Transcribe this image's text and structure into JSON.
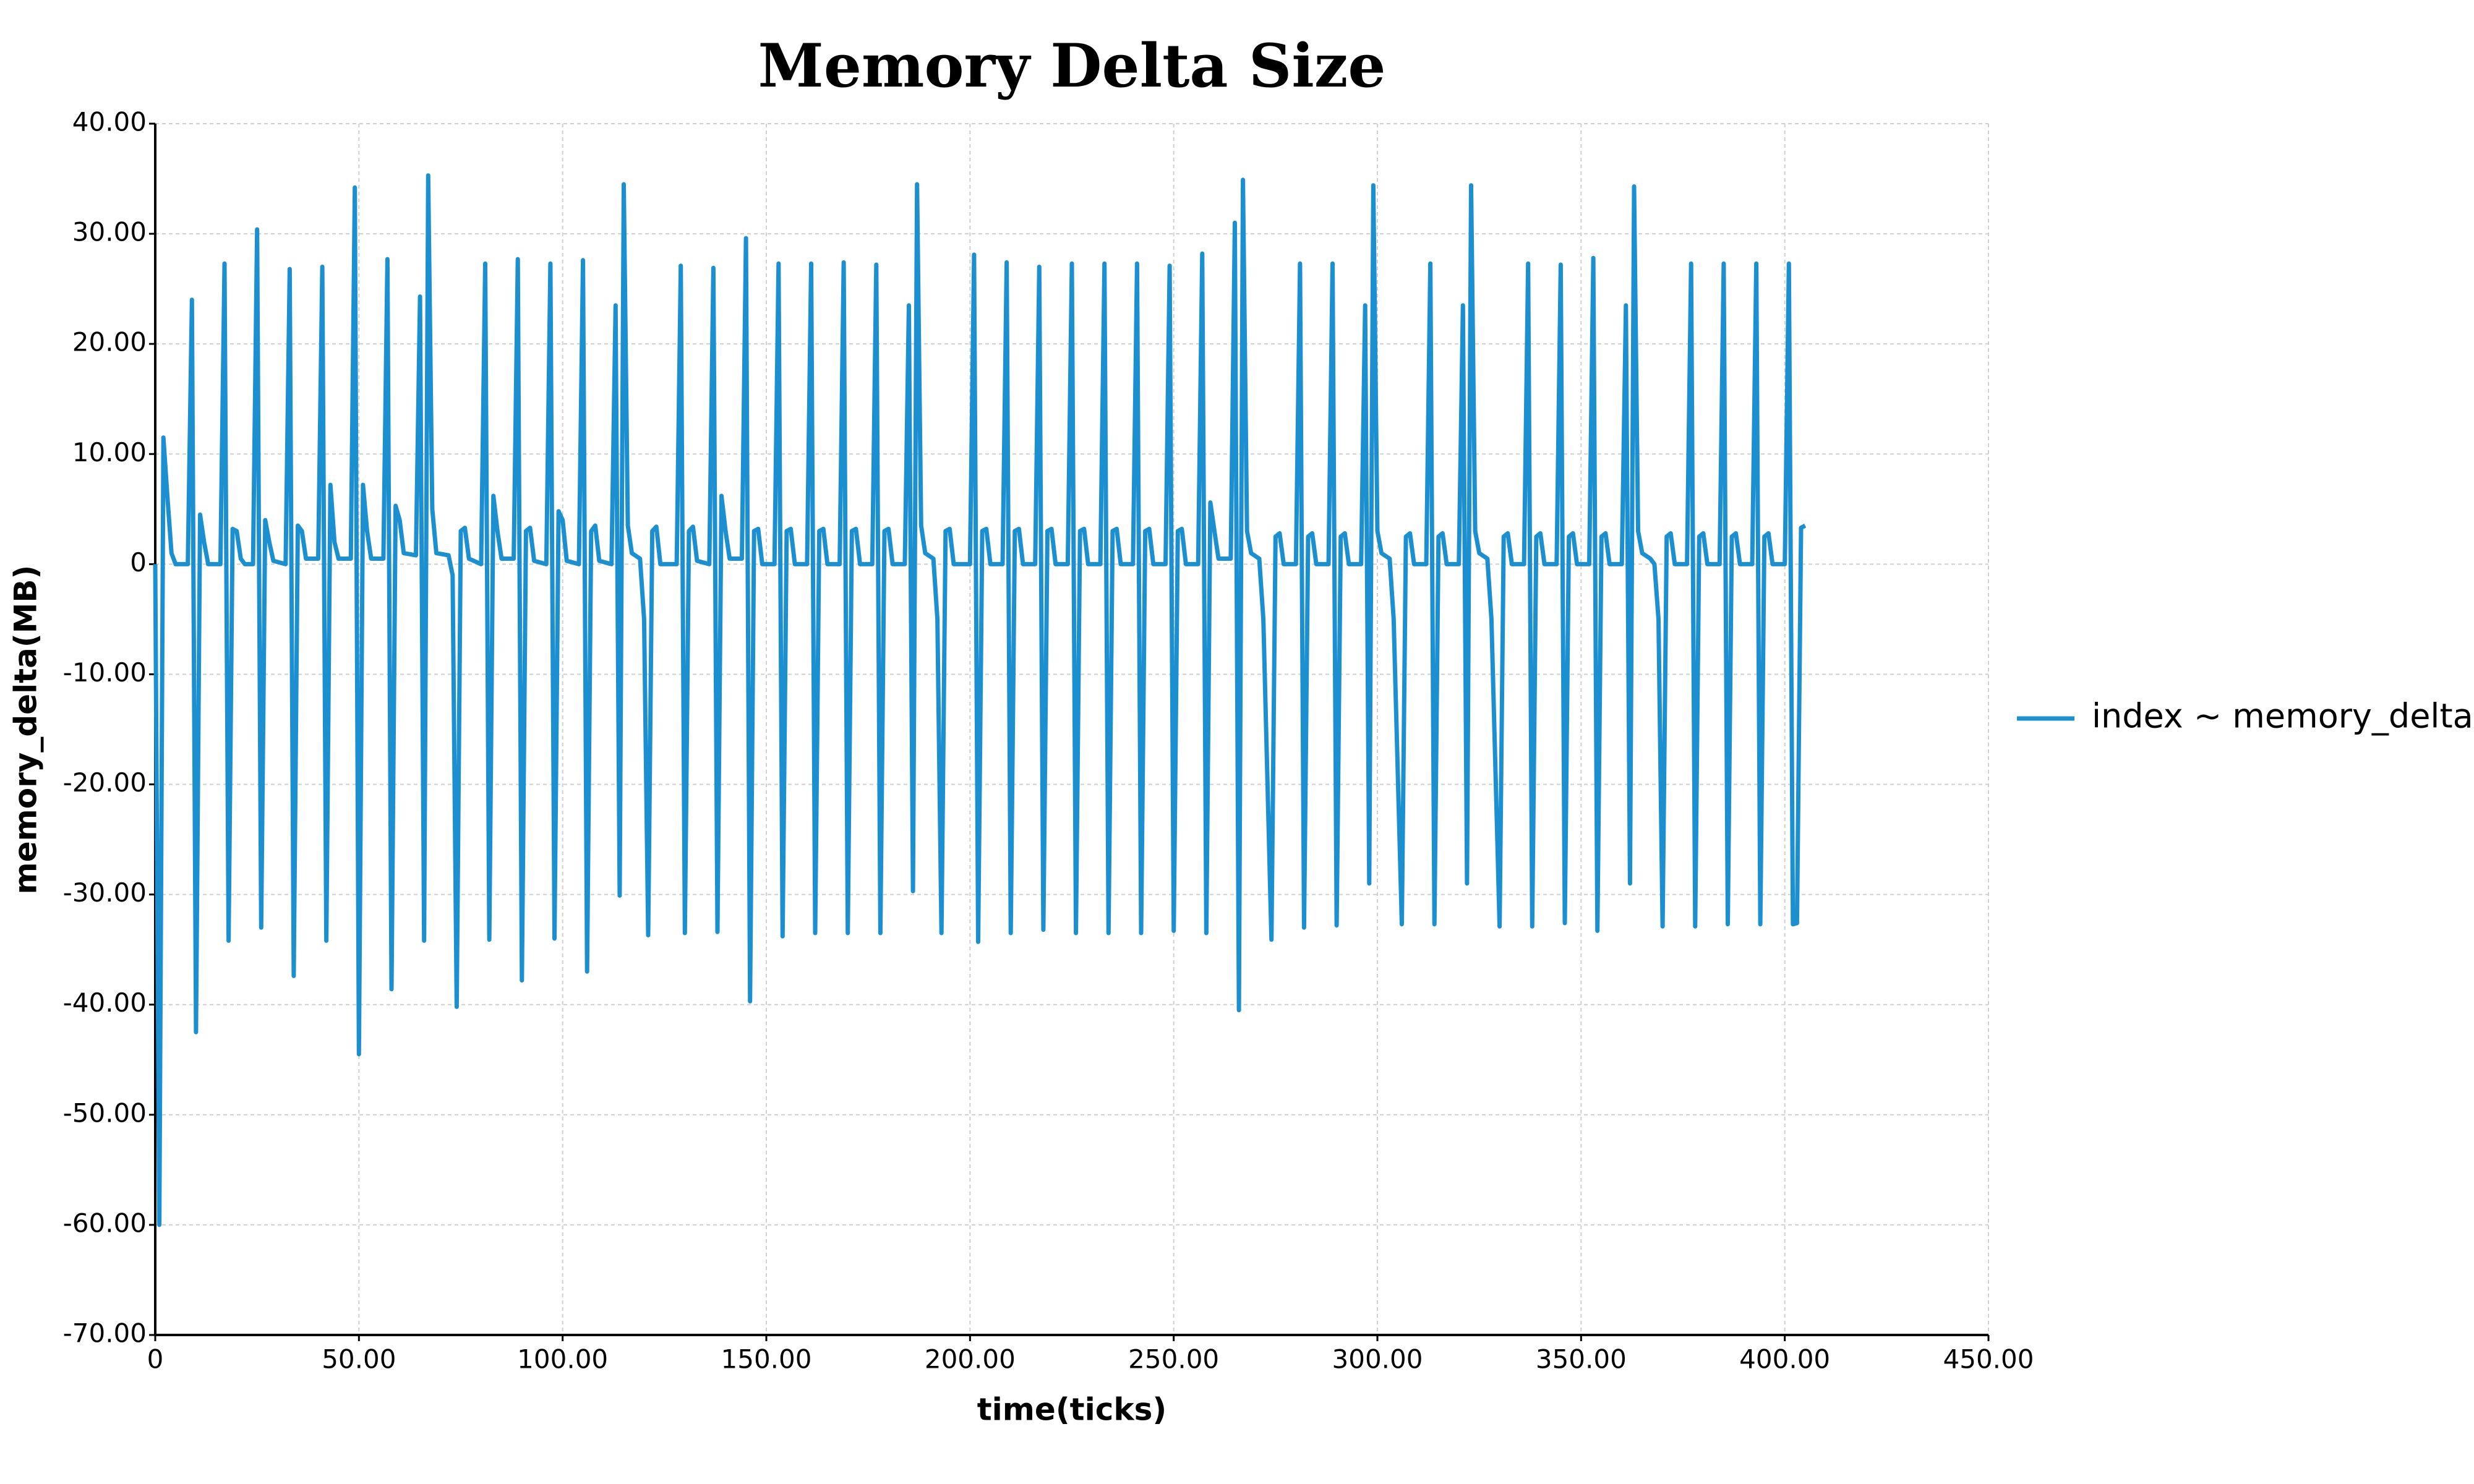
{
  "chart_data": {
    "type": "line",
    "title": "Memory Delta Size",
    "x_label": "time(ticks)",
    "y_label": "memory_delta(MB)",
    "grid": true,
    "legend_position": "right",
    "xlim": [
      0,
      450
    ],
    "xticks": [
      0,
      {
        "value": 50,
        "label": "50.00"
      },
      {
        "value": 100,
        "label": "100.00"
      },
      {
        "value": 150,
        "label": "150.00"
      },
      {
        "value": 200,
        "label": "200.00"
      },
      {
        "value": 250,
        "label": "250.00"
      },
      {
        "value": 300,
        "label": "300.00"
      },
      {
        "value": 350,
        "label": "350.00"
      },
      {
        "value": 400,
        "label": "400.00"
      },
      {
        "value": 450,
        "label": "450.00"
      }
    ],
    "ylim": [
      -70,
      40
    ],
    "yticks": [
      {
        "value": -70,
        "label": "-70.00"
      },
      {
        "value": -60,
        "label": "-60.00"
      },
      {
        "value": -50,
        "label": "-50.00"
      },
      {
        "value": -40,
        "label": "-40.00"
      },
      {
        "value": -30,
        "label": "-30.00"
      },
      {
        "value": -20,
        "label": "-20.00"
      },
      {
        "value": -10,
        "label": "-10.00"
      },
      0,
      {
        "value": 10,
        "label": "10.00"
      },
      {
        "value": 20,
        "label": "20.00"
      },
      {
        "value": 30,
        "label": "30.00"
      },
      {
        "value": 40,
        "label": "40.00"
      }
    ],
    "x": [
      0,
      1,
      2,
      3,
      4,
      5,
      8,
      9,
      10,
      11,
      12,
      13,
      16,
      17,
      18,
      19,
      20,
      21,
      22,
      24,
      25,
      26,
      27,
      28,
      29,
      32,
      33,
      34,
      35,
      36,
      37,
      40,
      41,
      42,
      43,
      44,
      45,
      48,
      49,
      50,
      51,
      52,
      53,
      56,
      57,
      58,
      59,
      60,
      61,
      64,
      65,
      66,
      67,
      68,
      69,
      72,
      73,
      74,
      75,
      76,
      77,
      80,
      81,
      82,
      83,
      84,
      85,
      88,
      89,
      90,
      91,
      92,
      93,
      96,
      97,
      98,
      99,
      100,
      101,
      104,
      105,
      106,
      107,
      108,
      109,
      112,
      113,
      114,
      115,
      116,
      117,
      119,
      120,
      121,
      122,
      123,
      124,
      128,
      129,
      130,
      131,
      132,
      133,
      136,
      137,
      138,
      139,
      140,
      141,
      144,
      145,
      146,
      147,
      148,
      149,
      152,
      153,
      154,
      155,
      156,
      157,
      160,
      161,
      162,
      163,
      164,
      165,
      168,
      169,
      170,
      171,
      172,
      173,
      176,
      177,
      178,
      179,
      180,
      181,
      184,
      185,
      186,
      187,
      188,
      189,
      191,
      192,
      193,
      194,
      195,
      196,
      200,
      201,
      202,
      203,
      204,
      205,
      208,
      209,
      210,
      211,
      212,
      213,
      216,
      217,
      218,
      219,
      220,
      221,
      224,
      225,
      226,
      227,
      228,
      229,
      232,
      233,
      234,
      235,
      236,
      237,
      240,
      241,
      242,
      243,
      244,
      245,
      248,
      249,
      250,
      251,
      252,
      253,
      256,
      257,
      258,
      259,
      260,
      261,
      264,
      265,
      266,
      267,
      268,
      269,
      271,
      272,
      274,
      275,
      276,
      277,
      280,
      281,
      282,
      283,
      284,
      285,
      288,
      289,
      290,
      291,
      292,
      293,
      296,
      297,
      298,
      299,
      300,
      301,
      303,
      304,
      306,
      307,
      308,
      309,
      312,
      313,
      314,
      315,
      316,
      317,
      320,
      321,
      322,
      323,
      324,
      325,
      327,
      328,
      330,
      331,
      332,
      333,
      336,
      337,
      338,
      339,
      340,
      341,
      344,
      345,
      346,
      347,
      348,
      349,
      352,
      353,
      354,
      355,
      356,
      357,
      360,
      361,
      362,
      363,
      364,
      365,
      367,
      368,
      369,
      370,
      371,
      372,
      373,
      376,
      377,
      378,
      379,
      380,
      381,
      384,
      385,
      386,
      387,
      388,
      389,
      392,
      393,
      394,
      395,
      396,
      397,
      400,
      401,
      402,
      403,
      404,
      405
    ],
    "series": [
      {
        "name": "index ~ memory_delta",
        "color": "#1b8fd0",
        "values": [
          0,
          -60,
          11.5,
          6,
          1,
          0,
          0,
          24,
          -42.5,
          4.5,
          2,
          0,
          0,
          27.3,
          -34.2,
          3.2,
          3,
          0.5,
          0,
          0,
          30.4,
          -33,
          4,
          2,
          0.3,
          0,
          26.8,
          -37.4,
          3.5,
          3,
          0.5,
          0.5,
          27,
          -34.2,
          7.2,
          2,
          0.5,
          0.5,
          34.2,
          -44.5,
          7.2,
          3,
          0.5,
          0.5,
          27.7,
          -38.6,
          5.3,
          4,
          1,
          0.8,
          24.3,
          -34.2,
          35.3,
          5,
          1,
          0.8,
          -1,
          -40.2,
          3,
          3.3,
          0.5,
          0,
          27.3,
          -34.1,
          6.2,
          3,
          0.5,
          0.5,
          27.7,
          -37.8,
          3,
          3.3,
          0.3,
          0,
          27.3,
          -34,
          4.8,
          4,
          0.3,
          0,
          27.6,
          -37,
          3,
          3.5,
          0.3,
          0,
          23.5,
          -30.1,
          34.5,
          3.5,
          1,
          0.5,
          -5,
          -33.7,
          3,
          3.4,
          0,
          0,
          27.1,
          -33.5,
          3,
          3.4,
          0.3,
          0,
          26.9,
          -33.4,
          6.2,
          3,
          0.5,
          0.5,
          29.6,
          -39.7,
          3,
          3.2,
          0,
          0,
          27.3,
          -33.8,
          3,
          3.2,
          0,
          0,
          27.3,
          -33.5,
          3,
          3.2,
          0,
          0,
          27.4,
          -33.5,
          3,
          3.2,
          0,
          0,
          27.2,
          -33.5,
          3,
          3.2,
          0,
          0,
          23.5,
          -29.7,
          34.5,
          3.5,
          1,
          0.5,
          -5,
          -33.5,
          3,
          3.2,
          0,
          0,
          28.1,
          -34.3,
          3,
          3.2,
          0,
          0,
          27.4,
          -33.5,
          3,
          3.2,
          0,
          0,
          27,
          -33.2,
          3,
          3.2,
          0,
          0,
          27.3,
          -33.5,
          3,
          3.2,
          0,
          0,
          27.3,
          -33.5,
          3,
          3.2,
          0,
          0,
          27.3,
          -33.5,
          3,
          3.2,
          0,
          0,
          27.1,
          -33.3,
          3,
          3.2,
          0,
          0,
          28.2,
          -33.5,
          5.6,
          3,
          0.5,
          0.5,
          31,
          -40.5,
          34.9,
          3,
          1,
          0.5,
          -5,
          -34.1,
          2.5,
          2.8,
          0,
          0,
          27.3,
          -33,
          2.5,
          2.8,
          0,
          0,
          27.3,
          -32.8,
          2.5,
          2.8,
          0,
          0,
          23.5,
          -29,
          34.4,
          3,
          1,
          0.5,
          -5,
          -32.7,
          2.5,
          2.8,
          0,
          0,
          27.3,
          -32.7,
          2.5,
          2.8,
          0,
          0,
          23.5,
          -29,
          34.4,
          3,
          1,
          0.5,
          -5,
          -32.9,
          2.5,
          2.8,
          0,
          0,
          27.3,
          -32.9,
          2.5,
          2.8,
          0,
          0,
          27.2,
          -32.6,
          2.5,
          2.8,
          0,
          0,
          27.8,
          -33.3,
          2.5,
          2.8,
          0,
          0,
          23.5,
          -29,
          34.3,
          3,
          1,
          0.5,
          0,
          -5,
          -32.9,
          2.5,
          2.8,
          0,
          0,
          27.3,
          -32.9,
          2.5,
          2.8,
          0,
          0,
          27.3,
          -32.7,
          2.5,
          2.8,
          0,
          0,
          27.3,
          -32.7,
          2.5,
          2.8,
          0,
          0,
          27.3,
          -32.7,
          -32.6,
          3.3,
          3.5
        ]
      }
    ]
  }
}
